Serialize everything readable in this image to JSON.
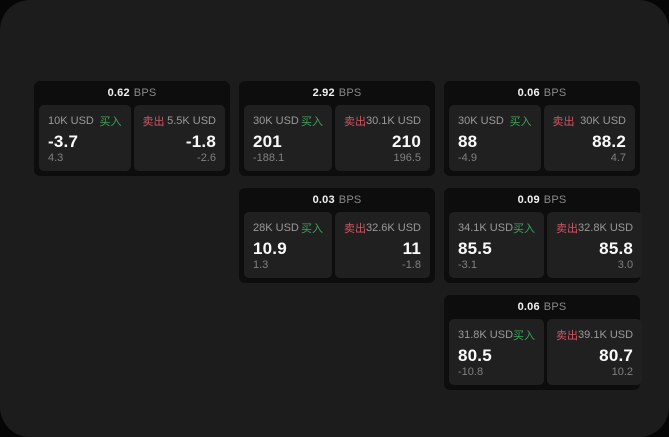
{
  "labels": {
    "unit": "BPS",
    "buy": "买入",
    "sell": "卖出"
  },
  "colors": {
    "window_bg": "#1c1c1c",
    "card_bg": "#0d0d0d",
    "tile_bg": "#202020",
    "buy_green": "#3fa35a",
    "sell_red": "#d15563",
    "value_white": "#fafafa",
    "muted_gray": "#9a9a9a"
  },
  "cards": [
    {
      "bps": "0.62",
      "buy": {
        "size": "10K USD",
        "price": "-3.7",
        "change": "4.3"
      },
      "sell": {
        "size": "5.5K USD",
        "price": "-1.8",
        "change": "-2.6"
      }
    },
    {
      "bps": "2.92",
      "buy": {
        "size": "30K USD",
        "price": "201",
        "change": "-188.1"
      },
      "sell": {
        "size": "30.1K USD",
        "price": "210",
        "change": "196.5"
      }
    },
    {
      "bps": "0.06",
      "buy": {
        "size": "30K USD",
        "price": "88",
        "change": "-4.9"
      },
      "sell": {
        "size": "30K USD",
        "price": "88.2",
        "change": "4.7"
      }
    },
    {
      "bps": "0.03",
      "buy": {
        "size": "28K USD",
        "price": "10.9",
        "change": "1.3"
      },
      "sell": {
        "size": "32.6K USD",
        "price": "11",
        "change": "-1.8"
      }
    },
    {
      "bps": "0.09",
      "buy": {
        "size": "34.1K USD",
        "price": "85.5",
        "change": "-3.1"
      },
      "sell": {
        "size": "32.8K USD",
        "price": "85.8",
        "change": "3.0"
      }
    },
    {
      "bps": "0.06",
      "buy": {
        "size": "31.8K USD",
        "price": "80.5",
        "change": "-10.8"
      },
      "sell": {
        "size": "39.1K USD",
        "price": "80.7",
        "change": "10.2"
      }
    }
  ]
}
